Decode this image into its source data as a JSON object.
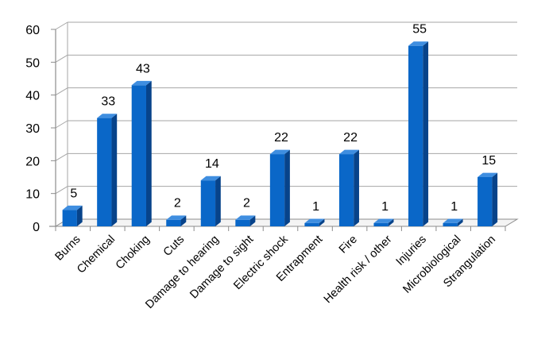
{
  "chart_data": {
    "type": "bar",
    "style": "3d-column",
    "title": "",
    "xlabel": "",
    "ylabel": "",
    "ylim": [
      0,
      60
    ],
    "yticks": [
      0,
      10,
      20,
      30,
      40,
      50,
      60
    ],
    "grid": true,
    "legend": "none",
    "colors": {
      "bar_front": "#0a67c8",
      "bar_side": "#07438a",
      "bar_top": "#3f8ee0",
      "grid": "#a6a6a6",
      "axis": "#8c8c8c"
    },
    "categories": [
      "Burns",
      "Chemical",
      "Choking",
      "Cuts",
      "Damage to hearing",
      "Damage to sight",
      "Electric shock",
      "Entrapment",
      "Fire",
      "Health risk / other",
      "Injuries",
      "Microbiological",
      "Strangulation"
    ],
    "values": [
      5,
      33,
      43,
      2,
      14,
      2,
      22,
      1,
      22,
      1,
      55,
      1,
      15
    ],
    "data_labels": [
      "5",
      "33",
      "43",
      "2",
      "14",
      "2",
      "22",
      "1",
      "22",
      "1",
      "55",
      "1",
      "15"
    ]
  }
}
